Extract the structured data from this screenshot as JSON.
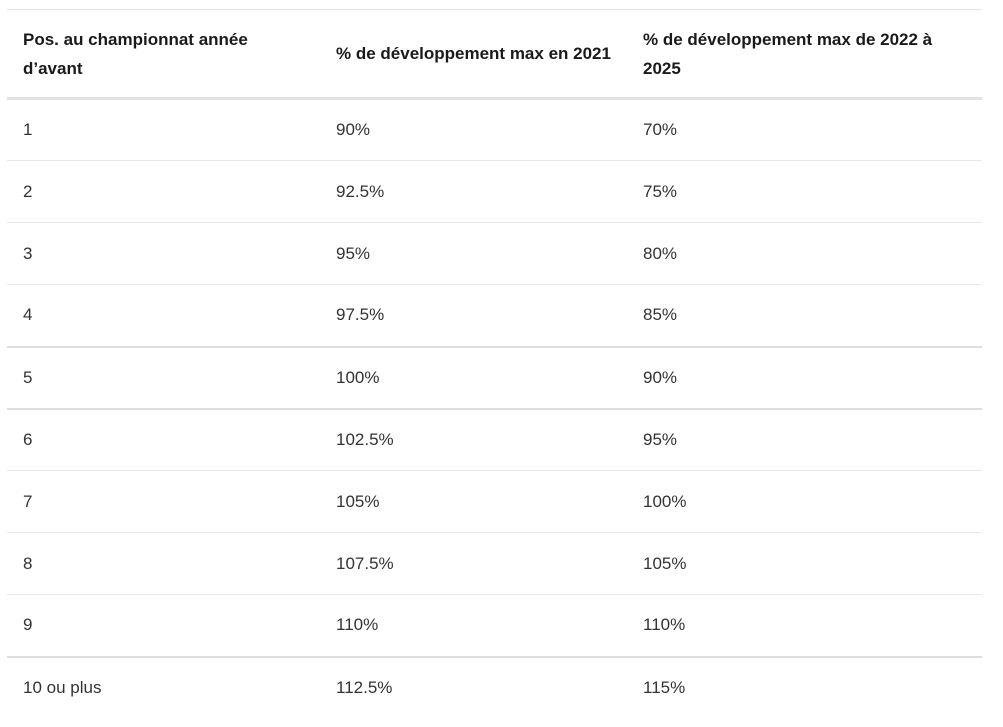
{
  "table": {
    "headers": [
      "Pos. au championnat année d’avant",
      "% de développement max en 2021",
      "% de développement max de 2022 à 2025"
    ],
    "rows": [
      [
        "1",
        "90%",
        "70%"
      ],
      [
        "2",
        "92.5%",
        "75%"
      ],
      [
        "3",
        "95%",
        "80%"
      ],
      [
        "4",
        "97.5%",
        "85%"
      ],
      [
        "5",
        "100%",
        "90%"
      ],
      [
        "6",
        "102.5%",
        "95%"
      ],
      [
        "7",
        "105%",
        "100%"
      ],
      [
        "8",
        "107.5%",
        "105%"
      ],
      [
        "9",
        "110%",
        "110%"
      ],
      [
        "10 ou plus",
        "112.5%",
        "115%"
      ]
    ]
  }
}
